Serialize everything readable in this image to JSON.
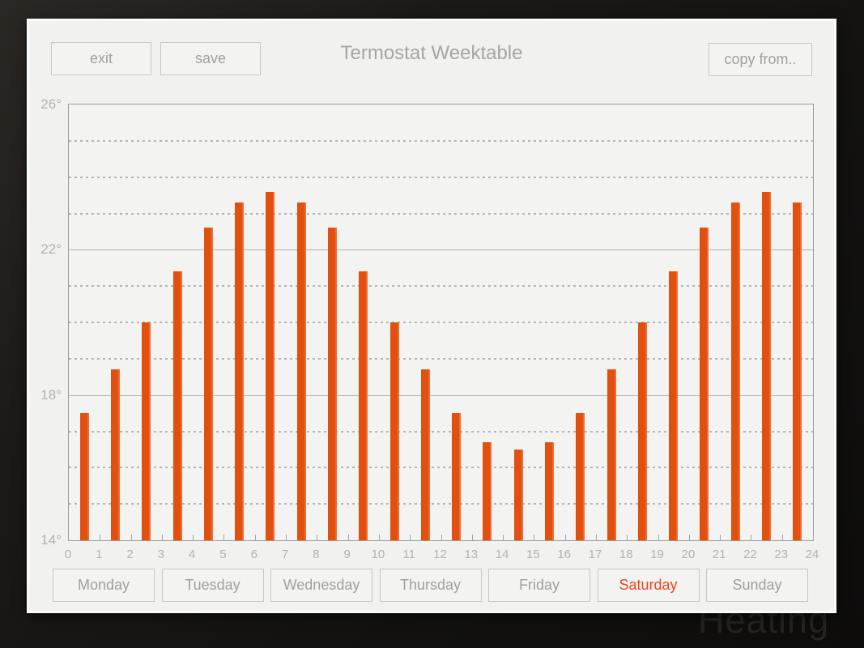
{
  "background": {
    "watermark": "Heating"
  },
  "header": {
    "exit_label": "exit",
    "save_label": "save",
    "title": "Termostat Weektable",
    "copy_from_label": "copy from.."
  },
  "days": {
    "items": [
      "Monday",
      "Tuesday",
      "Wednesday",
      "Thursday",
      "Friday",
      "Saturday",
      "Sunday"
    ],
    "selected": "Saturday"
  },
  "colors": {
    "bar": "#e2500f",
    "selected_day_text": "#ee4521",
    "panel_background": "#f1f1ef",
    "muted_text": "#a5a5a5",
    "axis_line": "#9b9b9b",
    "page_background": "#151312"
  },
  "chart_data": {
    "type": "bar",
    "title": "",
    "xlabel": "",
    "ylabel": "",
    "hours": [
      0,
      1,
      2,
      3,
      4,
      5,
      6,
      7,
      8,
      9,
      10,
      11,
      12,
      13,
      14,
      15,
      16,
      17,
      18,
      19,
      20,
      21,
      22,
      23
    ],
    "values": [
      17.5,
      18.7,
      20.0,
      21.4,
      22.6,
      23.3,
      23.6,
      23.3,
      22.6,
      21.4,
      20.0,
      18.7,
      17.5,
      16.7,
      16.5,
      16.7,
      17.5,
      18.7,
      20.0,
      21.4,
      22.6,
      23.3,
      23.6,
      23.3
    ],
    "unit": "°C",
    "ylim": [
      14,
      26
    ],
    "xlim": [
      0,
      24
    ],
    "y_ticks": [
      {
        "label": "26°",
        "value": 26
      },
      {
        "label": "22°",
        "value": 22
      },
      {
        "label": "18°",
        "value": 18
      },
      {
        "label": "14°",
        "value": 14
      }
    ],
    "x_tick_labels": [
      "0",
      "1",
      "2",
      "3",
      "4",
      "5",
      "6",
      "7",
      "8",
      "9",
      "10",
      "11",
      "12",
      "13",
      "14",
      "15",
      "16",
      "17",
      "18",
      "19",
      "20",
      "21",
      "22",
      "23",
      "24"
    ],
    "solid_gridlines_at": [
      18,
      22
    ],
    "dashed_gridlines": "every 1 degree between 15 and 25",
    "legend": "none",
    "bar_color": "#e2500f"
  }
}
